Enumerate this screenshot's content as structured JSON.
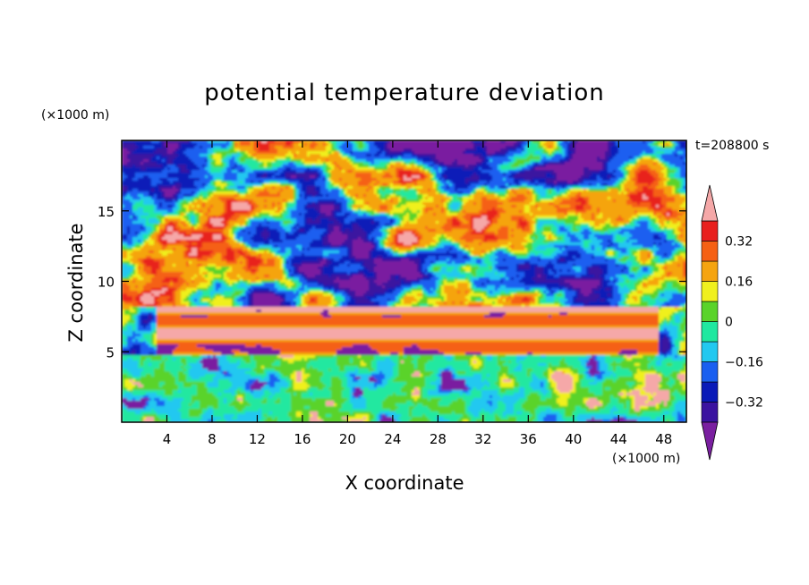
{
  "chart_data": {
    "type": "heatmap",
    "title": "potential temperature deviation",
    "xlabel": "X coordinate",
    "ylabel": "Z coordinate",
    "x_unit": "(×1000 m)",
    "y_unit": "(×1000 m)",
    "time_label": "t=208800 s",
    "xlim": [
      0,
      50
    ],
    "ylim": [
      0,
      20
    ],
    "x_ticks": [
      4,
      8,
      12,
      16,
      20,
      24,
      28,
      32,
      36,
      40,
      44,
      48
    ],
    "y_ticks": [
      5,
      10,
      15
    ],
    "colorbar": {
      "levels": [
        -0.4,
        -0.32,
        -0.24,
        -0.16,
        -0.08,
        0,
        0.08,
        0.16,
        0.24,
        0.32,
        0.4
      ],
      "labels": [
        "0.32",
        "0.16",
        "0",
        "−0.16",
        "−0.32"
      ],
      "label_values": [
        0.32,
        0.16,
        0,
        -0.16,
        -0.32
      ],
      "band_colors": [
        "#7a1fa0",
        "#3b13a0",
        "#0a1ab8",
        "#1a5ff0",
        "#22c8f0",
        "#20e8a0",
        "#5ad32a",
        "#f0f01e",
        "#f5a410",
        "#f56014",
        "#e8201e"
      ],
      "under_color": "#7a1fa0",
      "over_color": "#f5a8a8"
    },
    "regions": [
      {
        "description": "lower layer z<5: mixed green/cyan/yellow turbulent field with purple and pink blobs"
      },
      {
        "description": "z≈5-8: pink and orange horizontal bands spanning x≈3-47"
      },
      {
        "description": "z>8: large alternating purple and pink regions with colorful boundaries"
      }
    ]
  }
}
